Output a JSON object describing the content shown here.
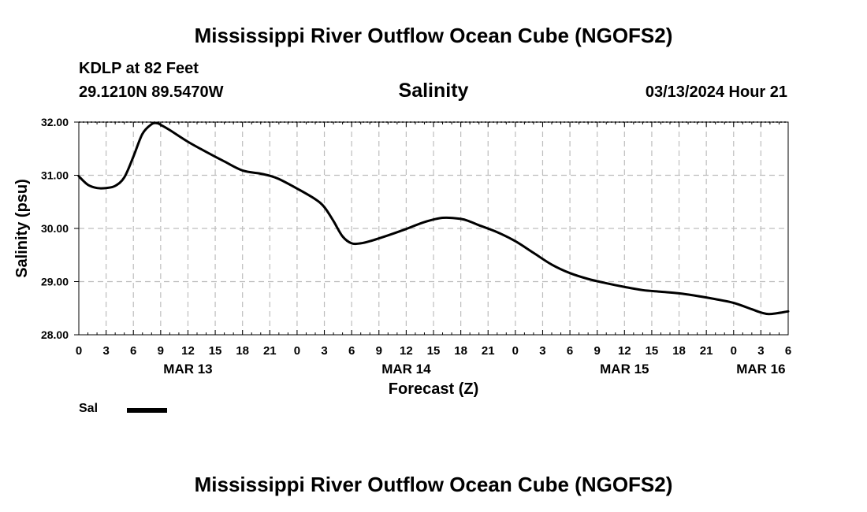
{
  "header": {
    "title": "Mississippi River Outflow Ocean Cube (NGOFS2)",
    "station": "KDLP at 82 Feet",
    "coords": "29.1210N  89.5470W",
    "variable": "Salinity",
    "datetime": "03/13/2024 Hour 21"
  },
  "footer": {
    "title": "Mississippi River Outflow Ocean Cube (NGOFS2)"
  },
  "legend": {
    "label": "Sal",
    "color": "#000000"
  },
  "chart_data": {
    "type": "line",
    "title": "Salinity",
    "xlabel": "Forecast (Z)",
    "ylabel": "Salinity (psu)",
    "xlim": [
      0,
      78
    ],
    "ylim": [
      28,
      32
    ],
    "grid": true,
    "legend_position": "bottom-left",
    "x_ticks": [
      0,
      3,
      6,
      9,
      12,
      15,
      18,
      21,
      24,
      27,
      30,
      33,
      36,
      39,
      42,
      45,
      48,
      51,
      54,
      57,
      60,
      63,
      66,
      69,
      72,
      75,
      78
    ],
    "x_tick_labels": [
      "0",
      "3",
      "6",
      "9",
      "12",
      "15",
      "18",
      "21",
      "0",
      "3",
      "6",
      "9",
      "12",
      "15",
      "18",
      "21",
      "0",
      "3",
      "6",
      "9",
      "12",
      "15",
      "18",
      "21",
      "0",
      "3",
      "6"
    ],
    "y_ticks": [
      28,
      29,
      30,
      31,
      32
    ],
    "y_tick_labels": [
      "28.00",
      "29.00",
      "30.00",
      "31.00",
      "32.00"
    ],
    "day_labels": [
      {
        "x": 12,
        "label": "MAR 13"
      },
      {
        "x": 36,
        "label": "MAR 14"
      },
      {
        "x": 60,
        "label": "MAR 15"
      },
      {
        "x": 75,
        "label": "MAR 16"
      }
    ],
    "series": [
      {
        "name": "Sal",
        "color": "#000000",
        "x": [
          0,
          1,
          2,
          3,
          4,
          5,
          6,
          7,
          8,
          8.6,
          9,
          10,
          12,
          14,
          16,
          18,
          20,
          21,
          22,
          24,
          26,
          27,
          28,
          29,
          30,
          31,
          32,
          34,
          36,
          38,
          40,
          42,
          43,
          44,
          46,
          48,
          50,
          52,
          54,
          56,
          58,
          60,
          62,
          64,
          66,
          68,
          70,
          72,
          74,
          75,
          76,
          78
        ],
        "values": [
          30.98,
          30.82,
          30.76,
          30.76,
          30.8,
          30.96,
          31.35,
          31.78,
          31.96,
          31.98,
          31.95,
          31.85,
          31.63,
          31.44,
          31.26,
          31.09,
          31.03,
          30.99,
          30.93,
          30.75,
          30.55,
          30.4,
          30.14,
          29.85,
          29.72,
          29.72,
          29.76,
          29.87,
          29.99,
          30.12,
          30.2,
          30.18,
          30.13,
          30.06,
          29.93,
          29.76,
          29.54,
          29.32,
          29.16,
          29.05,
          28.97,
          28.9,
          28.84,
          28.81,
          28.78,
          28.73,
          28.67,
          28.6,
          28.48,
          28.42,
          28.39,
          28.44
        ]
      }
    ]
  }
}
